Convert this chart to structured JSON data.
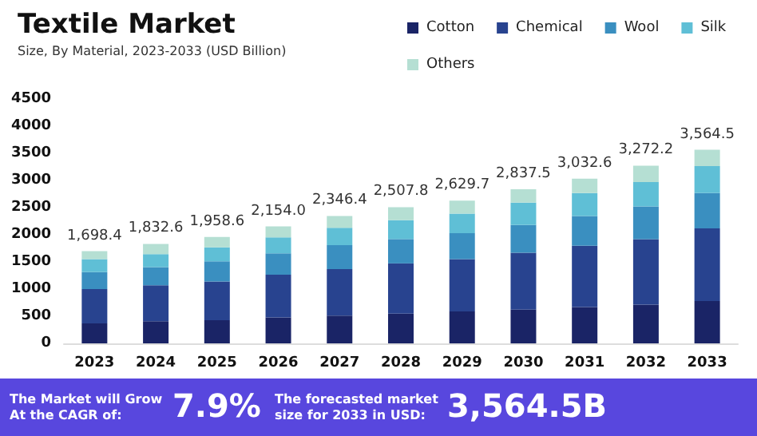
{
  "chart_data": {
    "type": "bar",
    "title": "Textile Market",
    "subtitle": "Size, By Material, 2023-2033 (USD Billion)",
    "categories": [
      "2023",
      "2024",
      "2025",
      "2026",
      "2027",
      "2028",
      "2029",
      "2030",
      "2031",
      "2032",
      "2033"
    ],
    "stacked": true,
    "series": [
      {
        "name": "Cotton",
        "color": "#1a2466",
        "values": [
          367,
          408,
          428,
          477,
          511,
          549,
          588,
          620,
          669,
          713,
          779
        ]
      },
      {
        "name": "Chemical",
        "color": "#28438f",
        "values": [
          633,
          662,
          711,
          788,
          858,
          924,
          965,
          1049,
          1127,
          1207,
          1338
        ]
      },
      {
        "name": "Wool",
        "color": "#3a8fc0",
        "values": [
          312,
          336,
          373,
          394,
          438,
          448,
          478,
          511,
          550,
          603,
          651
        ]
      },
      {
        "name": "Silk",
        "color": "#5fbfd6",
        "values": [
          239,
          236,
          255,
          293,
          320,
          348,
          359,
          411,
          421,
          448,
          495
        ]
      },
      {
        "name": "Others",
        "color": "#b5dfd3",
        "values": [
          147.4,
          190.6,
          191.6,
          202.0,
          219.4,
          238.8,
          239.7,
          246.5,
          265.6,
          301.2,
          301.5
        ]
      }
    ],
    "totals": [
      "1,698.4",
      "1,832.6",
      "1,958.6",
      "2,154.0",
      "2,346.4",
      "2,507.8",
      "2,629.7",
      "2,837.5",
      "3,032.6",
      "3,272.2",
      "3,564.5"
    ],
    "ylim": [
      0,
      4500
    ],
    "yticks": [
      0,
      500,
      1000,
      1500,
      2000,
      2500,
      3000,
      3500,
      4000,
      4500
    ],
    "grid": false,
    "legend": "top right",
    "annotations": [
      "The Market will Grow At the CAGR of:",
      "7.9%",
      "The forecasted market size for 2033 in USD:",
      "3,564.5B"
    ]
  }
}
